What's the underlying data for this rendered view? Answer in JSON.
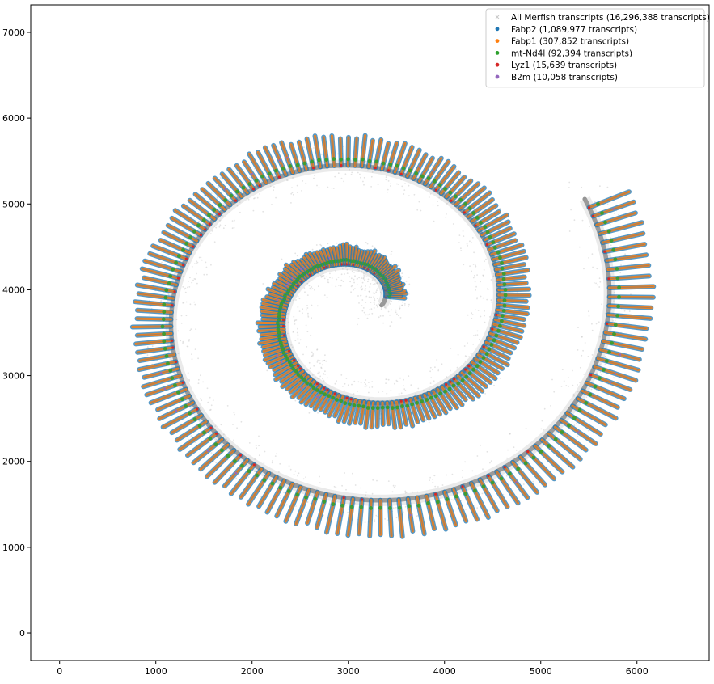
{
  "chart_data": {
    "type": "scatter",
    "title": "",
    "xlabel": "",
    "ylabel": "",
    "xlim": [
      -300,
      6750
    ],
    "ylim": [
      -320,
      7320
    ],
    "xticks": [
      0,
      1000,
      2000,
      3000,
      4000,
      5000,
      6000
    ],
    "yticks": [
      0,
      1000,
      2000,
      3000,
      4000,
      5000,
      6000,
      7000
    ],
    "grid": false,
    "legend_position": "top-right",
    "series": [
      {
        "name": "All Merfish transcripts (16,296,388 transcripts)",
        "color": "#c8c8c8",
        "marker": "x",
        "count": 16296388
      },
      {
        "name": "Fabp2 (1,089,977 transcripts)",
        "color": "#1f77b4",
        "marker": "dot",
        "count": 1089977
      },
      {
        "name": "Fabp1 (307,852 transcripts)",
        "color": "#ff7f0e",
        "marker": "dot",
        "count": 307852
      },
      {
        "name": "mt-Nd4l (92,394 transcripts)",
        "color": "#2ca02c",
        "marker": "dot",
        "count": 92394
      },
      {
        "name": "Lyz1 (15,639 transcripts)",
        "color": "#d62728",
        "marker": "dot",
        "count": 15639
      },
      {
        "name": "B2m (10,058 transcripts)",
        "color": "#9467bd",
        "marker": "dot",
        "count": 10058
      }
    ]
  }
}
